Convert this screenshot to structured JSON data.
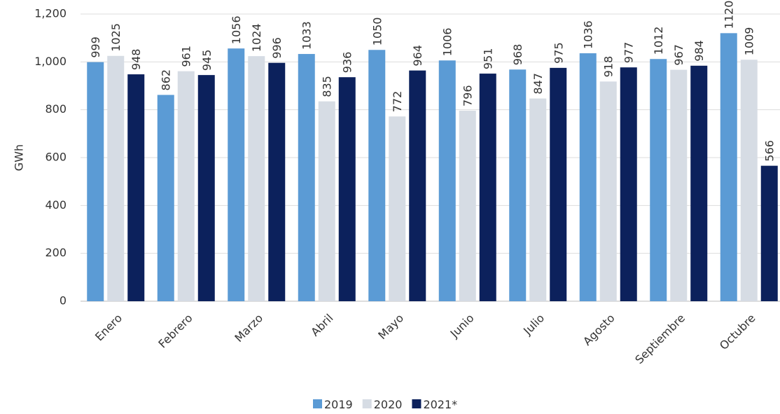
{
  "chart_data": {
    "type": "bar",
    "y_label": "GWh",
    "categories": [
      "Enero",
      "Febrero",
      "Marzo",
      "Abril",
      "Mayo",
      "Junio",
      "Julio",
      "Agosto",
      "Septiembre",
      "Octubre"
    ],
    "series": [
      {
        "name": "2019",
        "color": "#5b9bd5",
        "values": [
          999,
          862,
          1056,
          1033,
          1050,
          1006,
          968,
          1036,
          1012,
          1120
        ]
      },
      {
        "name": "2020",
        "color": "#d6dce4",
        "values": [
          1025,
          961,
          1024,
          835,
          772,
          796,
          847,
          918,
          967,
          1009
        ]
      },
      {
        "name": "2021*",
        "color": "#0c215c",
        "values": [
          948,
          945,
          996,
          936,
          964,
          951,
          975,
          977,
          984,
          566
        ]
      }
    ],
    "ylim": [
      0,
      1200
    ],
    "yticks": [
      0,
      200,
      400,
      600,
      800,
      {
        "value": 1000,
        "label": "1,000"
      },
      {
        "value": 1200,
        "label": "1,200"
      }
    ],
    "grid": true
  }
}
